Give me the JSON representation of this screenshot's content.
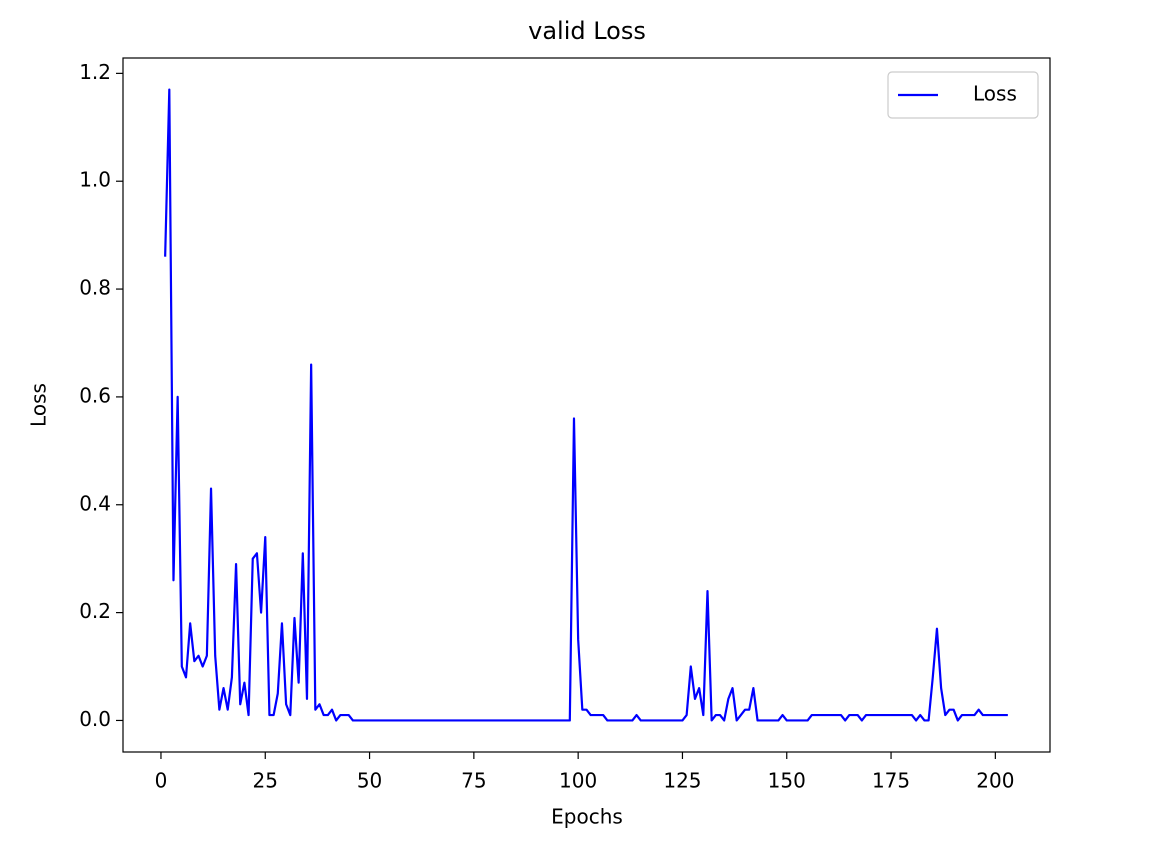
{
  "chart_data": {
    "type": "line",
    "title": "valid Loss",
    "x_label": "Epochs",
    "y_label": "Loss",
    "x": [
      1,
      2,
      3,
      4,
      5,
      6,
      7,
      8,
      9,
      10,
      11,
      12,
      13,
      14,
      15,
      16,
      17,
      18,
      19,
      20,
      21,
      22,
      23,
      24,
      25,
      26,
      27,
      28,
      29,
      30,
      31,
      32,
      33,
      34,
      35,
      36,
      37,
      38,
      39,
      40,
      41,
      42,
      43,
      44,
      45,
      46,
      47,
      48,
      49,
      50,
      51,
      52,
      53,
      54,
      55,
      56,
      57,
      58,
      59,
      60,
      61,
      62,
      63,
      64,
      65,
      66,
      67,
      68,
      69,
      70,
      71,
      72,
      73,
      74,
      75,
      76,
      77,
      78,
      79,
      80,
      81,
      82,
      83,
      84,
      85,
      86,
      87,
      88,
      89,
      90,
      91,
      92,
      93,
      94,
      95,
      96,
      97,
      98,
      99,
      100,
      101,
      102,
      103,
      104,
      105,
      106,
      107,
      108,
      109,
      110,
      111,
      112,
      113,
      114,
      115,
      116,
      117,
      118,
      119,
      120,
      121,
      122,
      123,
      124,
      125,
      126,
      127,
      128,
      129,
      130,
      131,
      132,
      133,
      134,
      135,
      136,
      137,
      138,
      139,
      140,
      141,
      142,
      143,
      144,
      145,
      146,
      147,
      148,
      149,
      150,
      151,
      152,
      153,
      154,
      155,
      156,
      157,
      158,
      159,
      160,
      161,
      162,
      163,
      164,
      165,
      166,
      167,
      168,
      169,
      170,
      171,
      172,
      173,
      174,
      175,
      176,
      177,
      178,
      179,
      180,
      181,
      182,
      183,
      184,
      185,
      186,
      187,
      188,
      189,
      190,
      191,
      192,
      193,
      194,
      195,
      196,
      197,
      198,
      199,
      200,
      201,
      202,
      203
    ],
    "series": [
      {
        "name": "Loss",
        "color": "#0000ff",
        "values": [
          0.86,
          1.17,
          0.26,
          0.6,
          0.1,
          0.08,
          0.18,
          0.11,
          0.12,
          0.1,
          0.12,
          0.43,
          0.12,
          0.02,
          0.06,
          0.02,
          0.08,
          0.29,
          0.03,
          0.07,
          0.01,
          0.3,
          0.31,
          0.2,
          0.34,
          0.01,
          0.01,
          0.05,
          0.18,
          0.03,
          0.01,
          0.19,
          0.07,
          0.31,
          0.04,
          0.66,
          0.02,
          0.03,
          0.01,
          0.01,
          0.02,
          0,
          0.01,
          0.01,
          0.01,
          0,
          0,
          0,
          0,
          0,
          0,
          0,
          0,
          0,
          0,
          0,
          0,
          0,
          0,
          0,
          0,
          0,
          0,
          0,
          0,
          0,
          0,
          0,
          0,
          0,
          0,
          0,
          0,
          0,
          0,
          0,
          0,
          0,
          0,
          0,
          0,
          0,
          0,
          0,
          0,
          0,
          0,
          0,
          0,
          0,
          0,
          0,
          0,
          0,
          0,
          0,
          0,
          0,
          0.56,
          0.15,
          0.02,
          0.02,
          0.01,
          0.01,
          0.01,
          0.01,
          0,
          0,
          0,
          0,
          0,
          0,
          0,
          0.01,
          0,
          0,
          0,
          0,
          0,
          0,
          0,
          0,
          0,
          0,
          0,
          0.01,
          0.1,
          0.04,
          0.06,
          0.01,
          0.24,
          0,
          0.01,
          0.01,
          0,
          0.04,
          0.06,
          0,
          0.01,
          0.02,
          0.02,
          0.06,
          0,
          0,
          0,
          0,
          0,
          0,
          0.01,
          0,
          0,
          0,
          0,
          0,
          0,
          0.01,
          0.01,
          0.01,
          0.01,
          0.01,
          0.01,
          0.01,
          0.01,
          0,
          0.01,
          0.01,
          0.01,
          0,
          0.01,
          0.01,
          0.01,
          0.01,
          0.01,
          0.01,
          0.01,
          0.01,
          0.01,
          0.01,
          0.01,
          0.01,
          0,
          0.01,
          0,
          0,
          0.08,
          0.17,
          0.06,
          0.01,
          0.02,
          0.02,
          0,
          0.01,
          0.01,
          0.01,
          0.01,
          0.02,
          0.01,
          0.01,
          0.01,
          0.01,
          0.01,
          0.01,
          0.01
        ]
      }
    ],
    "xlim": [
      -9.1,
      213.1
    ],
    "xticks": [
      0,
      25,
      50,
      75,
      100,
      125,
      150,
      175,
      200
    ],
    "ylim": [
      -0.0585,
      1.2285
    ],
    "yticks": [
      {
        "value": 0,
        "label": "0.0"
      },
      0.2,
      0.4,
      0.6,
      0.8,
      {
        "value": 1,
        "label": "1.0"
      },
      1.2
    ],
    "grid": false,
    "legend": "upper right"
  }
}
